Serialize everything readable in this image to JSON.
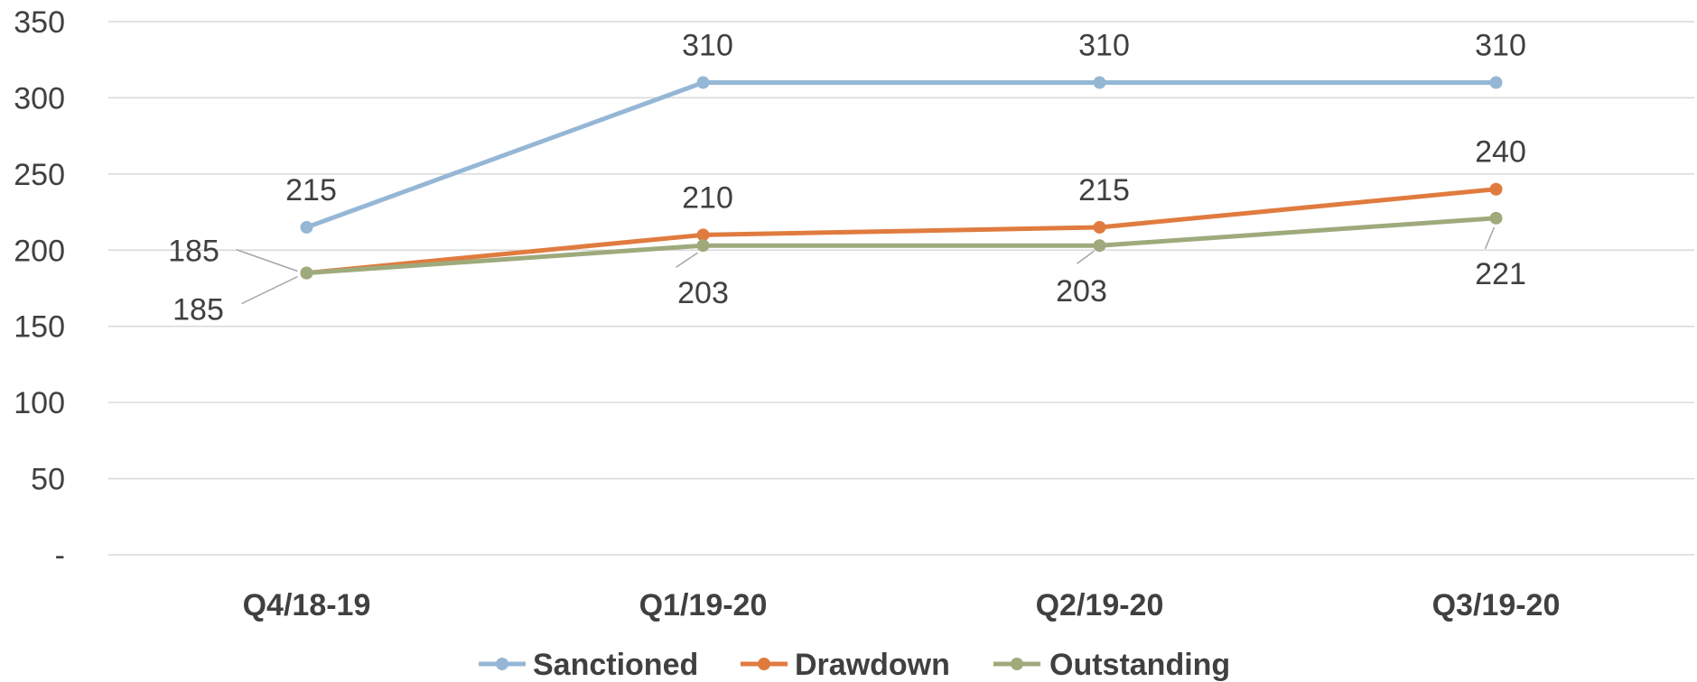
{
  "colors": {
    "sanctioned": "#95b7d5",
    "drawdown": "#e07b3f",
    "outstanding": "#9eaa7c"
  },
  "chart_data": {
    "type": "line",
    "categories": [
      "Q4/18-19",
      "Q1/19-20",
      "Q2/19-20",
      "Q3/19-20"
    ],
    "y_ticks": [
      "-",
      "50",
      "100",
      "150",
      "200",
      "250",
      "300",
      "350"
    ],
    "ylim": [
      0,
      350
    ],
    "grid": true,
    "legend_position": "bottom",
    "series": [
      {
        "name": "Sanctioned",
        "values": [
          215,
          310,
          310,
          310
        ]
      },
      {
        "name": "Drawdown",
        "values": [
          185,
          210,
          215,
          240
        ]
      },
      {
        "name": "Outstanding",
        "values": [
          185,
          203,
          203,
          221
        ]
      }
    ]
  }
}
